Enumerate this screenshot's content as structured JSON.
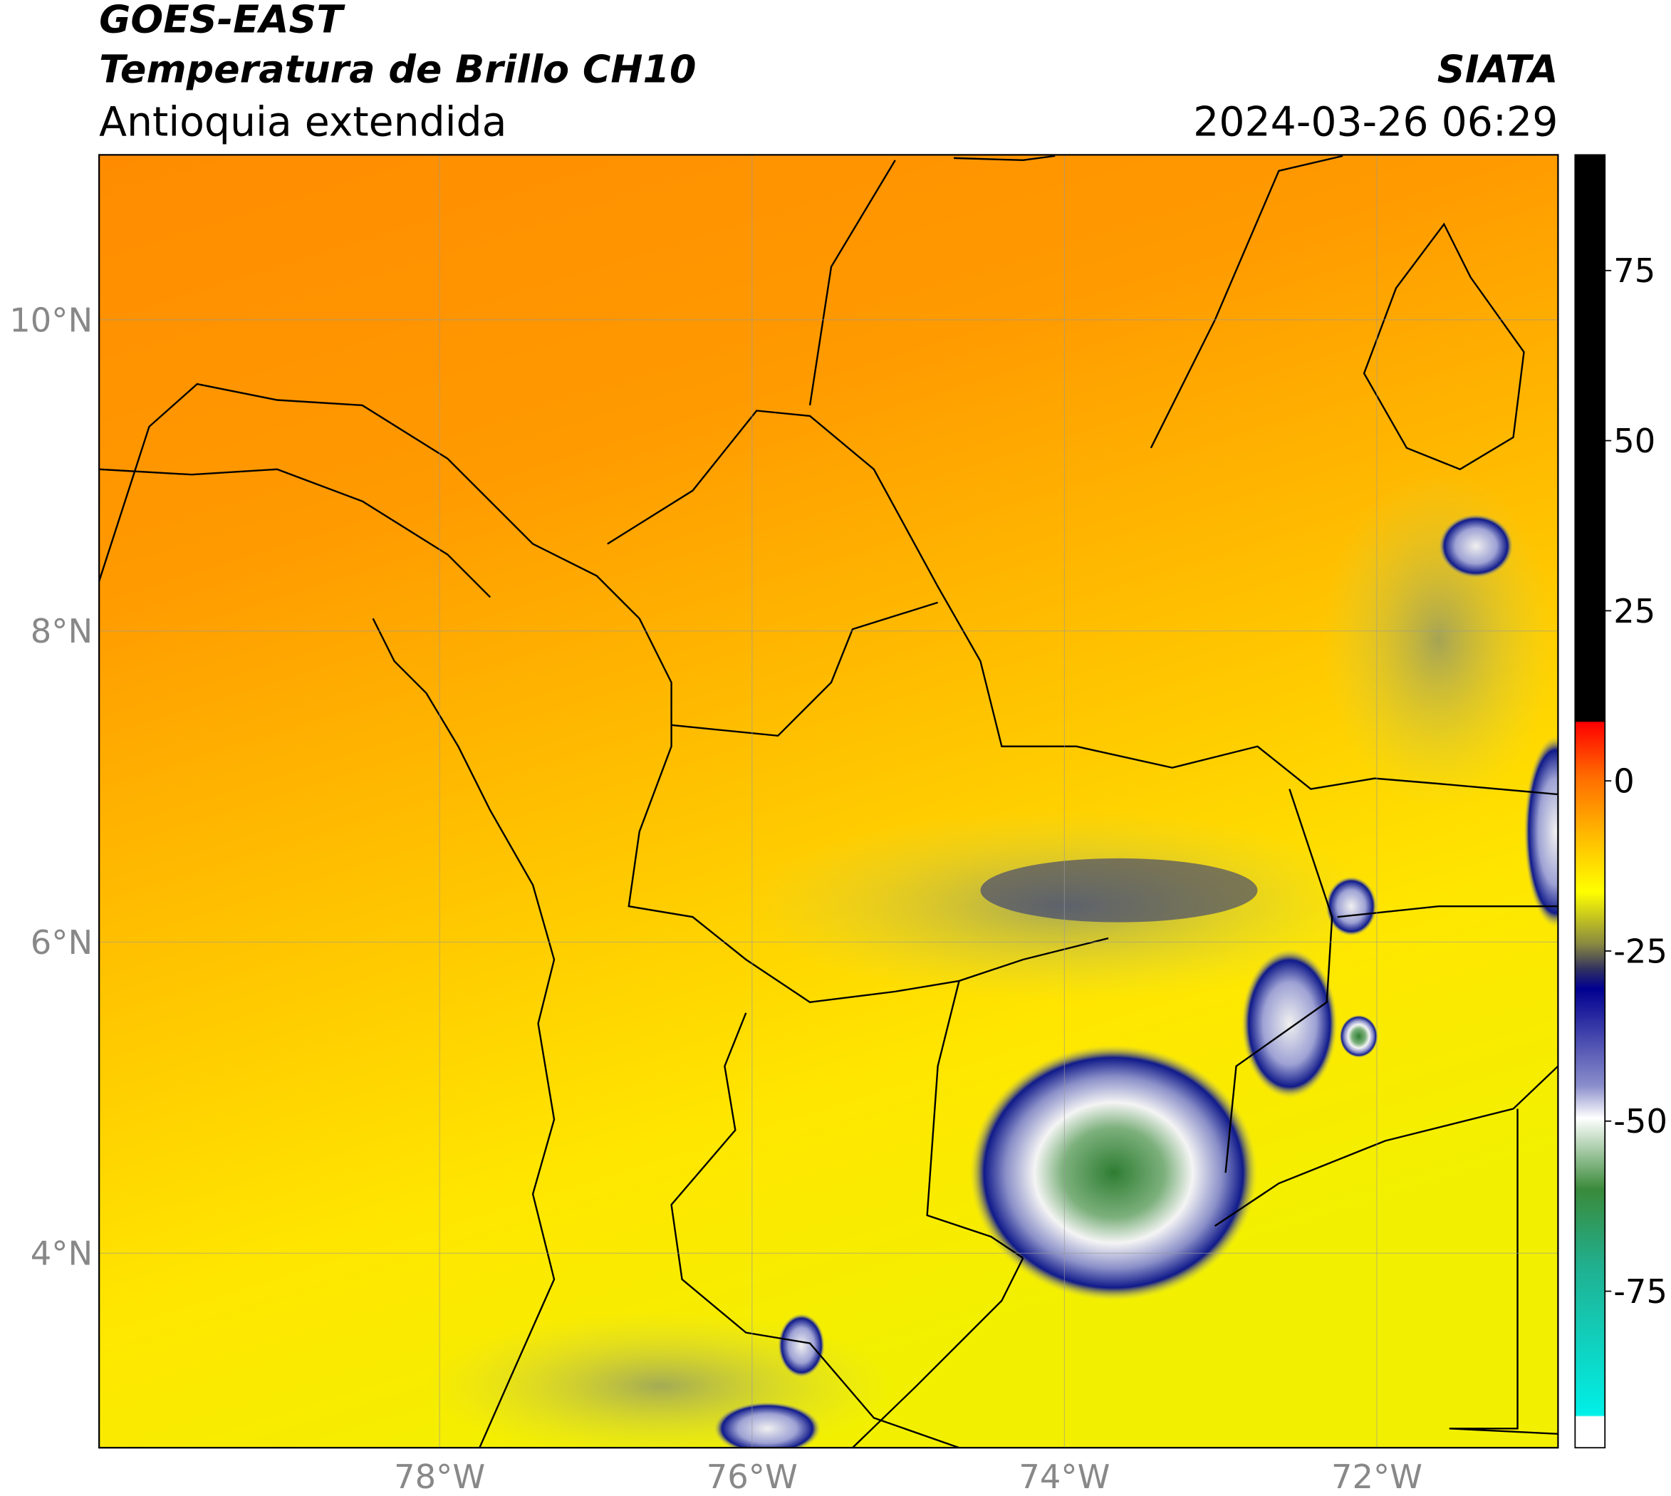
{
  "header": {
    "title": "GOES-EAST",
    "subtitle": "Temperatura de Brillo CH10",
    "region": "Antioquia extendida",
    "source": "SIATA",
    "datetime": "2024-03-26 06:29"
  },
  "map": {
    "lon_range": [
      -80.18,
      -70.84
    ],
    "lat_range": [
      2.75,
      11.06
    ],
    "lon_ticks": [
      {
        "value": -78,
        "label": "78°W"
      },
      {
        "value": -76,
        "label": "76°W"
      },
      {
        "value": -74,
        "label": "74°W"
      },
      {
        "value": -72,
        "label": "72°W"
      }
    ],
    "lat_ticks": [
      {
        "value": 10,
        "label": "10°N"
      },
      {
        "value": 8,
        "label": "8°N"
      },
      {
        "value": 6,
        "label": "6°N"
      },
      {
        "value": 4,
        "label": "4°N"
      }
    ]
  },
  "colorbar": {
    "range": [
      -98,
      92
    ],
    "ticks": [
      75,
      50,
      25,
      0,
      -25,
      -50,
      -75
    ]
  }
}
